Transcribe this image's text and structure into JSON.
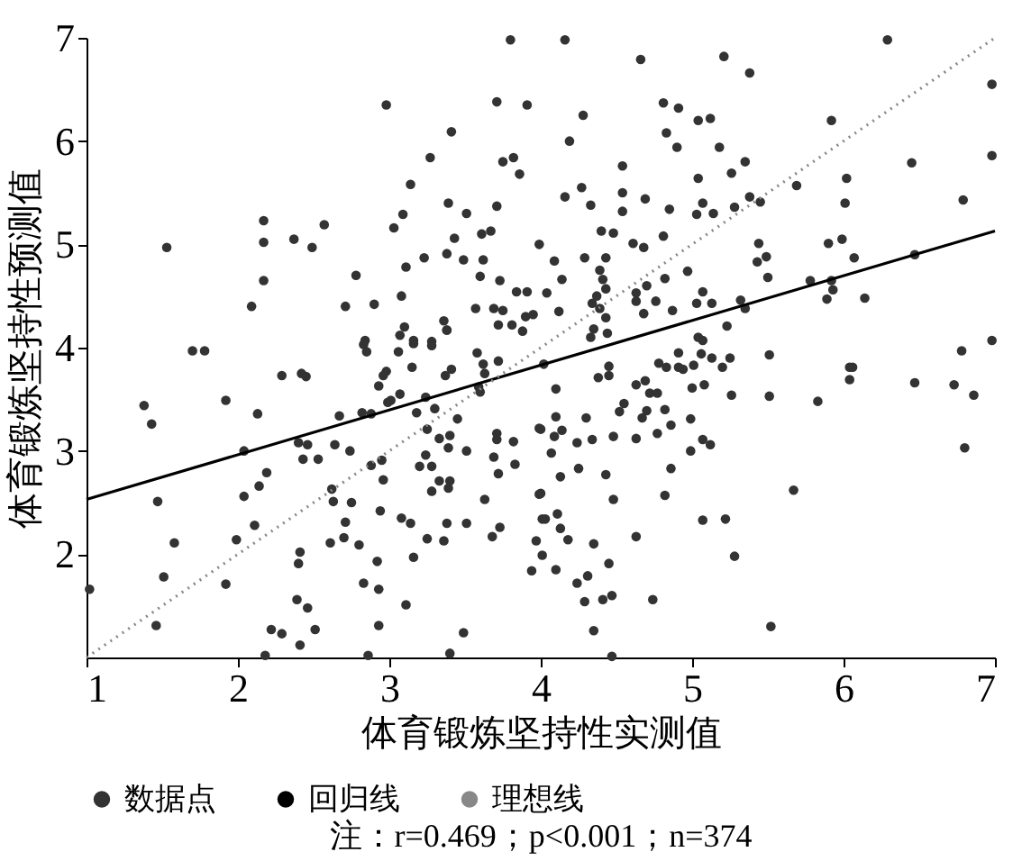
{
  "chart_data": {
    "type": "scatter",
    "xlabel": "体育锻炼坚持性实测值",
    "ylabel": "体育锻炼坚持性预测值",
    "annotations": [
      "注：r=0.469；p<0.001；n=374"
    ],
    "xlim": [
      1,
      7
    ],
    "ylim": [
      1,
      7
    ],
    "xticks": [
      1,
      2,
      3,
      4,
      5,
      6,
      7
    ],
    "yticks": [
      2,
      3,
      4,
      5,
      6,
      7
    ],
    "legend": "bottom",
    "series": [
      {
        "name": "数据点",
        "marker": "circle",
        "color": "#333333",
        "x": [
          1.53,
          2.17,
          2.17,
          2.17,
          2.09,
          2.37,
          2.49,
          2.57,
          2.71,
          2.78,
          2.9,
          2.84,
          2.98,
          3.03,
          3.09,
          3.14,
          3.11,
          3.08,
          3.1,
          3.27,
          3.23,
          3.41,
          3.39,
          3.38,
          3.43,
          3.36,
          3.38,
          3.51,
          3.49,
          3.61,
          3.67,
          3.62,
          3.6,
          3.57,
          3.71,
          3.71,
          3.73,
          3.69,
          3.75,
          3.72,
          3.8,
          3.91,
          3.75,
          3.82,
          3.86,
          3.84,
          3.91,
          3.9,
          3.95,
          3.99,
          3.81,
          3.16,
          3.28,
          3.88,
          4.16,
          4.66,
          5.21,
          5.38,
          6.29,
          6.98,
          4.28,
          4.81,
          4.91,
          5.04,
          5.12,
          5.92,
          4.19,
          4.83,
          4.9,
          5.18,
          4.54,
          5.35,
          5.26,
          5.04,
          5.69,
          6.02,
          6.45,
          6.98,
          4.16,
          4.27,
          4.33,
          4.54,
          4.54,
          4.69,
          4.85,
          5.03,
          5.07,
          5.14,
          5.28,
          5.38,
          5.45,
          6.01,
          6.79,
          4.4,
          4.48,
          4.61,
          4.68,
          4.81,
          4.09,
          4.29,
          4.43,
          4.14,
          4.39,
          4.41,
          4.63,
          4.7,
          4.82,
          4.97,
          4.04,
          4.37,
          4.43,
          5.44,
          5.43,
          5.49,
          5.5,
          5.78,
          5.9,
          5.99,
          6.07,
          6.47,
          5.92,
          5.93,
          5.89,
          6.14,
          5.32,
          5.35,
          5.07,
          5.13,
          5.03,
          4.87,
          4.68,
          4.76,
          4.63,
          4.34,
          4.39,
          4.43,
          4.35,
          4.33,
          4.44,
          5.23,
          5.04,
          4.12,
          1.7,
          1.78,
          1.38,
          1.43,
          1.47,
          1.58,
          1.51,
          1.46,
          1.92,
          2.13,
          2.04,
          2.04,
          2.14,
          2.19,
          2.11,
          1.99,
          1.92,
          2.29,
          2.42,
          2.45,
          2.4,
          2.46,
          2.43,
          2.53,
          2.41,
          2.4,
          2.39,
          2.46,
          2.22,
          2.29,
          2.41,
          2.51,
          2.18,
          2.67,
          2.64,
          2.74,
          2.62,
          2.63,
          2.75,
          2.71,
          2.61,
          2.7,
          2.8,
          2.83,
          2.92,
          2.93,
          2.93,
          2.86,
          2.83,
          2.85,
          2.93,
          2.98,
          2.96,
          2.82,
          2.88,
          2.99,
          3.06,
          3.07,
          3.16,
          3.15,
          3.01,
          3.07,
          3.18,
          3.24,
          3.28,
          3.38,
          3.41,
          3.37,
          3.3,
          3.25,
          3.33,
          3.24,
          3.2,
          3.28,
          3.33,
          3.28,
          2.95,
          2.88,
          2.96,
          2.94,
          3.08,
          3.14,
          3.16,
          3.25,
          3.36,
          3.11,
          3.38,
          3.45,
          3.4,
          3.39,
          3.4,
          3.39,
          3.51,
          3.51,
          3.49,
          3.4,
          3.58,
          3.62,
          3.63,
          3.59,
          3.6,
          3.72,
          3.71,
          3.71,
          3.69,
          3.82,
          3.83,
          3.72,
          3.63,
          3.73,
          3.68,
          3.99,
          3.99,
          4.01,
          3.97,
          4.01,
          3.94,
          1.02,
          4.02,
          4.1,
          4.0,
          4.09,
          4.14,
          4.07,
          4.13,
          4.0,
          4.24,
          4.34,
          4.3,
          4.1,
          4.25,
          4.43,
          4.48,
          4.03,
          4.11,
          4.13,
          4.18,
          4.1,
          4.35,
          4.24,
          4.31,
          4.29,
          4.41,
          4.47,
          4.45,
          4.35,
          4.47,
          4.63,
          4.74,
          4.82,
          4.86,
          4.48,
          4.63,
          4.77,
          4.86,
          4.82,
          4.67,
          4.55,
          4.52,
          4.7,
          4.63,
          4.69,
          4.72,
          4.77,
          4.45,
          4.45,
          4.38,
          4.78,
          4.83,
          4.91,
          4.91,
          4.94,
          5.0,
          5.08,
          5.01,
          5.06,
          5.07,
          5.13,
          5.2,
          5.25,
          5.26,
          4.99,
          4.99,
          5.07,
          5.12,
          5.07,
          5.22,
          5.28,
          5.51,
          5.51,
          5.52,
          5.67,
          5.83,
          6.04,
          6.06,
          6.04,
          6.47,
          6.73,
          6.78,
          6.86,
          6.8,
          6.98
        ],
        "values": [
          4.97,
          5.23,
          5.02,
          4.65,
          4.4,
          5.05,
          4.97,
          5.19,
          4.4,
          4.7,
          4.42,
          4.07,
          6.35,
          5.16,
          5.29,
          5.58,
          4.78,
          4.5,
          4.2,
          5.84,
          4.87,
          6.09,
          5.4,
          4.91,
          5.06,
          4.26,
          4.17,
          5.3,
          4.85,
          5.1,
          5.13,
          4.85,
          4.69,
          4.38,
          5.37,
          6.38,
          4.65,
          4.38,
          4.36,
          4.22,
          6.98,
          6.35,
          5.8,
          5.84,
          5.68,
          4.54,
          4.54,
          4.3,
          4.32,
          5.0,
          4.22,
          4.07,
          4.06,
          4.16,
          6.98,
          6.79,
          6.82,
          6.66,
          6.98,
          6.55,
          6.25,
          6.37,
          6.32,
          6.2,
          6.22,
          6.2,
          6.0,
          6.08,
          5.94,
          5.94,
          5.76,
          5.8,
          5.69,
          5.64,
          5.57,
          5.64,
          5.79,
          5.86,
          5.46,
          5.55,
          5.38,
          5.5,
          5.32,
          5.44,
          5.34,
          5.29,
          5.4,
          5.3,
          5.36,
          5.46,
          5.41,
          5.4,
          5.43,
          5.13,
          5.11,
          5.01,
          4.97,
          5.08,
          4.84,
          4.87,
          4.87,
          4.66,
          4.75,
          4.66,
          4.53,
          4.6,
          4.67,
          4.74,
          4.53,
          4.5,
          4.57,
          5.01,
          4.83,
          4.88,
          4.68,
          4.65,
          5.01,
          5.05,
          4.87,
          4.9,
          4.65,
          4.56,
          4.47,
          4.48,
          4.46,
          4.38,
          4.54,
          4.43,
          4.43,
          4.36,
          4.33,
          4.45,
          4.45,
          4.43,
          4.38,
          4.29,
          4.18,
          4.1,
          4.14,
          4.21,
          4.1,
          4.35,
          3.97,
          3.97,
          3.44,
          3.26,
          2.51,
          2.11,
          1.78,
          1.31,
          3.49,
          3.36,
          3.0,
          2.56,
          2.66,
          2.79,
          2.28,
          2.14,
          1.71,
          3.73,
          3.75,
          3.72,
          3.08,
          3.06,
          2.92,
          2.92,
          2.02,
          1.91,
          1.56,
          1.48,
          1.27,
          1.23,
          1.12,
          1.27,
          1.02,
          3.34,
          3.06,
          3.0,
          2.63,
          2.51,
          2.5,
          2.31,
          2.11,
          2.16,
          2.09,
          1.72,
          1.93,
          1.66,
          1.31,
          1.02,
          4.03,
          3.96,
          3.63,
          3.77,
          3.73,
          3.37,
          3.36,
          3.47,
          3.96,
          4.12,
          4.04,
          3.81,
          3.49,
          3.55,
          3.37,
          3.52,
          4.02,
          4.17,
          3.79,
          3.73,
          3.41,
          3.21,
          3.12,
          2.96,
          2.85,
          2.85,
          2.71,
          2.61,
          2.91,
          2.86,
          2.72,
          2.42,
          2.35,
          2.3,
          1.97,
          2.15,
          2.13,
          1.51,
          2.3,
          3.31,
          3.15,
          3.03,
          2.71,
          2.64,
          3.0,
          2.3,
          1.24,
          1.04,
          3.95,
          3.84,
          3.75,
          3.62,
          3.57,
          3.87,
          3.17,
          3.11,
          2.94,
          3.09,
          2.87,
          2.78,
          2.53,
          2.26,
          2.17,
          3.22,
          2.58,
          2.34,
          2.13,
          1.99,
          1.84,
          1.66,
          3.84,
          3.6,
          3.21,
          3.14,
          3.2,
          2.98,
          2.75,
          2.59,
          3.08,
          3.11,
          3.32,
          3.33,
          2.83,
          2.77,
          2.53,
          2.34,
          2.39,
          2.25,
          2.14,
          1.85,
          2.1,
          1.72,
          1.79,
          1.54,
          1.56,
          1.6,
          1.91,
          1.26,
          1.01,
          2.17,
          1.56,
          2.57,
          2.83,
          3.14,
          3.12,
          3.17,
          3.25,
          3.4,
          3.32,
          3.46,
          3.38,
          3.39,
          3.64,
          3.68,
          3.56,
          3.56,
          3.73,
          3.82,
          3.71,
          3.85,
          3.81,
          3.95,
          3.81,
          3.79,
          3.61,
          3.64,
          3.83,
          3.94,
          4.07,
          3.9,
          3.81,
          3.9,
          3.54,
          3.31,
          3.0,
          3.11,
          3.06,
          2.33,
          2.34,
          1.98,
          3.93,
          3.53,
          1.3,
          2.62,
          3.48,
          3.81,
          3.81,
          3.69,
          3.66,
          3.64,
          3.97,
          3.54,
          3.03,
          4.07
        ]
      },
      {
        "name": "回归线",
        "type": "line",
        "color": "#000000",
        "line_style": "solid",
        "marker": "none",
        "x": [
          1,
          7
        ],
        "values": [
          2.53,
          5.13
        ]
      },
      {
        "name": "理想线",
        "type": "line",
        "color": "#888888",
        "line_style": "dotted",
        "marker": "none",
        "x": [
          1,
          7
        ],
        "values": [
          1,
          7
        ]
      }
    ]
  }
}
